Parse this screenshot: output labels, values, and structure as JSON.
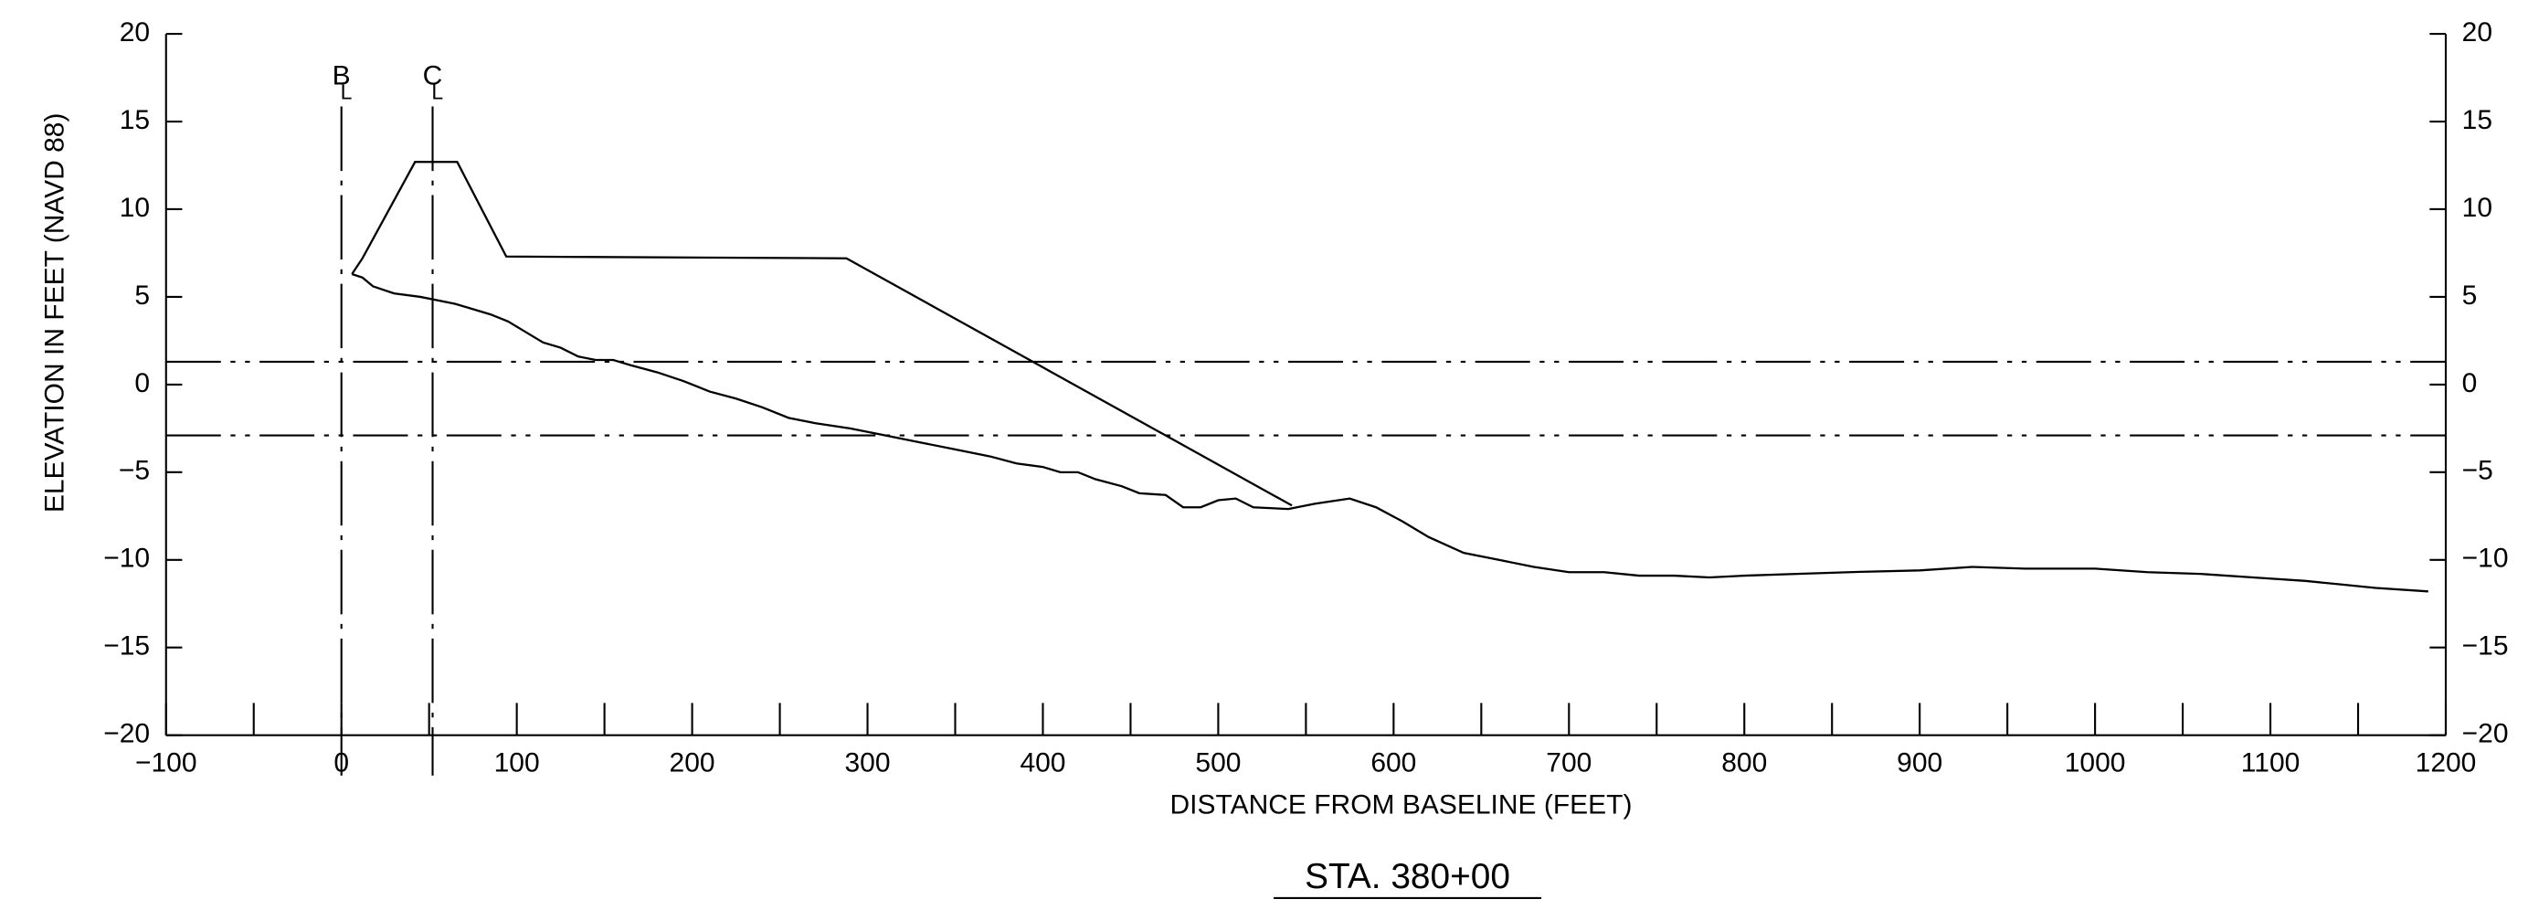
{
  "chart_data": {
    "type": "line",
    "title": "STA. 380+00",
    "x_label": "DISTANCE FROM BASELINE (FEET)",
    "y_label": "ELEVATION IN FEET (NAVD 88)",
    "xlim": [
      -100,
      1200
    ],
    "ylim": [
      -20,
      20
    ],
    "y2lim": [
      -20,
      20
    ],
    "xticks": [
      {
        "value": -100,
        "label": "−100"
      },
      0,
      100,
      200,
      300,
      400,
      500,
      600,
      700,
      800,
      900,
      1000,
      1100,
      1200
    ],
    "xminorticks": [
      -50,
      50,
      150,
      250,
      350,
      450,
      550,
      650,
      750,
      850,
      950,
      1050,
      1150
    ],
    "yticks": [
      {
        "value": -20,
        "label": "−20"
      },
      {
        "value": -15,
        "label": "−15"
      },
      {
        "value": -10,
        "label": "−10"
      },
      {
        "value": -5,
        "label": "−5"
      },
      0,
      5,
      10,
      15,
      20
    ],
    "y2ticks": [
      {
        "value": -20,
        "label": "−20"
      },
      {
        "value": -15,
        "label": "−15"
      },
      {
        "value": -10,
        "label": "−10"
      },
      {
        "value": -5,
        "label": "−5"
      },
      0,
      5,
      10,
      15,
      20
    ],
    "markers": [
      {
        "x": 0,
        "top": "B",
        "bottom": "L"
      },
      {
        "x": 52,
        "top": "C",
        "bottom": "L"
      }
    ],
    "reference_lines": [
      {
        "y": 1.3
      },
      {
        "y": -2.9
      }
    ],
    "series": [
      {
        "color": "#000",
        "x": [
          6,
          12,
          42,
          66,
          94,
          288,
          542
        ],
        "values": [
          6.3,
          7.2,
          12.7,
          12.7,
          7.3,
          7.2,
          -6.9
        ]
      },
      {
        "color": "#000",
        "x": [
          6,
          12,
          18,
          30,
          45,
          55,
          65,
          75,
          85,
          95,
          105,
          115,
          125,
          135,
          145,
          155,
          165,
          180,
          195,
          210,
          225,
          240,
          255,
          270,
          290,
          310,
          330,
          350,
          370,
          385,
          400,
          410,
          420,
          430,
          445,
          455,
          470,
          480,
          490,
          500,
          510,
          520,
          540,
          555,
          575,
          590,
          605,
          620,
          640,
          660,
          680,
          700,
          720,
          740,
          760,
          780,
          800,
          830,
          860,
          900,
          930,
          960,
          1000,
          1030,
          1060,
          1090,
          1120,
          1140,
          1160,
          1190
        ],
        "values": [
          6.3,
          6.1,
          5.6,
          5.2,
          5.0,
          4.8,
          4.6,
          4.3,
          4.0,
          3.6,
          3.0,
          2.4,
          2.1,
          1.6,
          1.4,
          1.4,
          1.1,
          0.7,
          0.2,
          -0.4,
          -0.8,
          -1.3,
          -1.9,
          -2.2,
          -2.5,
          -2.9,
          -3.3,
          -3.7,
          -4.1,
          -4.5,
          -4.7,
          -5.0,
          -5.0,
          -5.4,
          -5.8,
          -6.2,
          -6.3,
          -7.0,
          -7.0,
          -6.6,
          -6.5,
          -7.0,
          -7.1,
          -6.8,
          -6.5,
          -7.0,
          -7.8,
          -8.7,
          -9.6,
          -10.0,
          -10.4,
          -10.7,
          -10.7,
          -10.9,
          -10.9,
          -11.0,
          -10.9,
          -10.8,
          -10.7,
          -10.6,
          -10.4,
          -10.5,
          -10.5,
          -10.7,
          -10.8,
          -11.0,
          -11.2,
          -11.4,
          -11.6,
          -11.8
        ]
      }
    ]
  }
}
